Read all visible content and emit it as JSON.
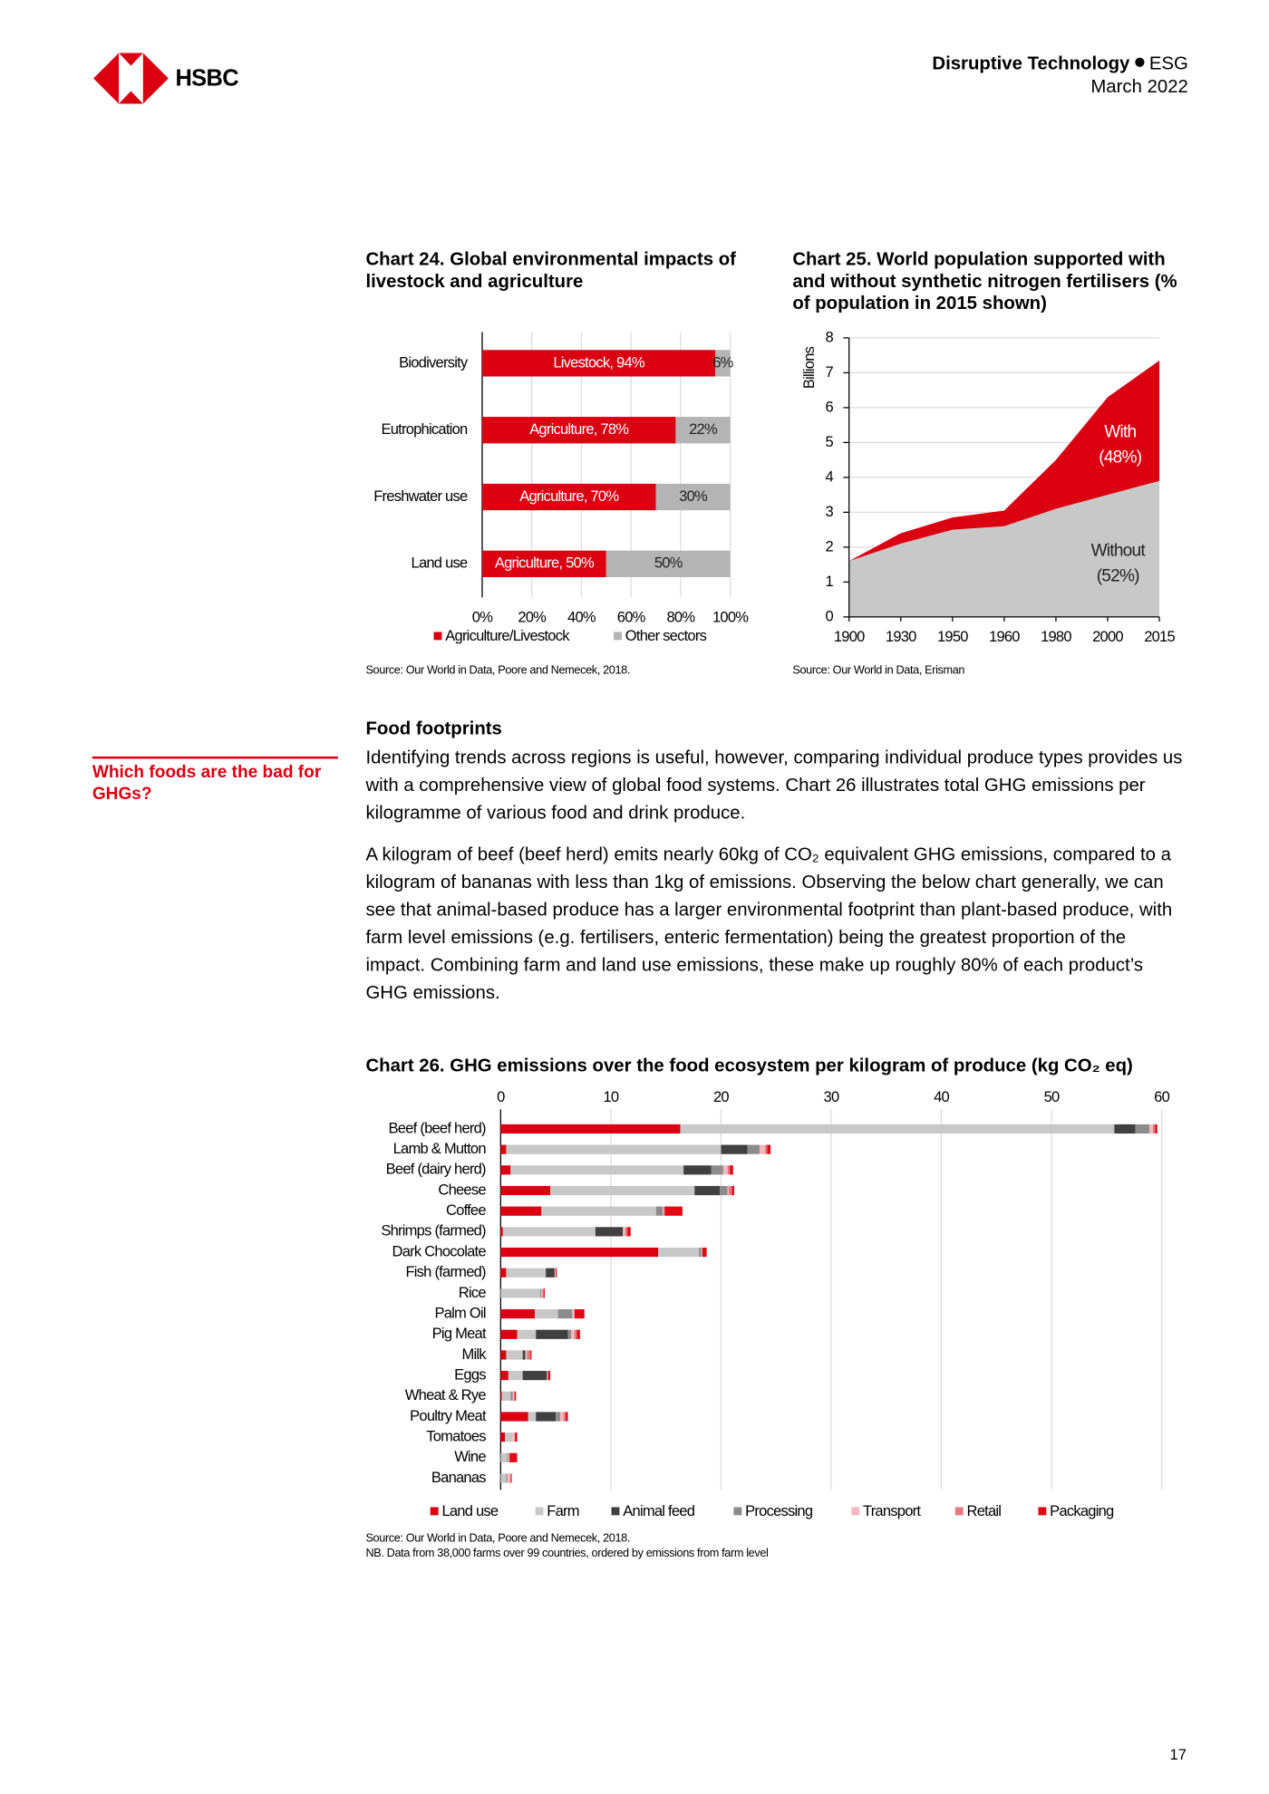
{
  "header": {
    "logo_text": "HSBC",
    "series": "Disruptive Technology",
    "topic": "ESG",
    "date": "March 2022"
  },
  "sidebar": {
    "note": "Which foods are the bad for GHGs?"
  },
  "section": {
    "heading": "Food footprints",
    "paragraphs": [
      "Identifying trends across regions is useful, however, comparing individual produce types provides us with a comprehensive view of global food systems. Chart 26 illustrates total GHG emissions per kilogramme of various food and drink produce.",
      "A kilogram of beef (beef herd) emits nearly 60kg of CO₂ equivalent GHG emissions, compared to a kilogram of bananas with less than 1kg of emissions. Observing the below chart generally, we can see that animal-based produce has a larger environmental footprint than plant-based produce, with farm level emissions (e.g. fertilisers, enteric fermentation) being the greatest proportion of the impact. Combining farm and land use emissions, these make up roughly 80% of each product’s GHG emissions."
    ]
  },
  "chart_data": [
    {
      "type": "bar",
      "horizontal": true,
      "stacked": true,
      "grid": true,
      "title": "Chart 24. Global environmental impacts of livestock and agriculture",
      "source": "Source: Our World in Data, Poore and Nemecek, 2018.",
      "categories": [
        "Biodiversity",
        "Eutrophication",
        "Freshwater use",
        "Land use"
      ],
      "series": [
        {
          "name": "Agriculture/Livestock",
          "color": "#db0011",
          "values": [
            94,
            78,
            70,
            50
          ],
          "value_labels": [
            "Livestock, 94%",
            "Agriculture, 78%",
            "Agriculture, 70%",
            "Agriculture, 50%"
          ]
        },
        {
          "name": "Other sectors",
          "color": "#b4b4b4",
          "values": [
            6,
            22,
            30,
            50
          ],
          "value_labels": [
            "6%",
            "22%",
            "30%",
            "50%"
          ]
        }
      ],
      "xlim": [
        0,
        100
      ],
      "xticks": [
        {
          "value": 0,
          "label": "0%"
        },
        {
          "value": 20,
          "label": "20%"
        },
        {
          "value": 40,
          "label": "40%"
        },
        {
          "value": 60,
          "label": "60%"
        },
        {
          "value": 80,
          "label": "80%"
        },
        {
          "value": 100,
          "label": "100%"
        }
      ]
    },
    {
      "type": "area",
      "stacked": true,
      "grid": true,
      "title": "Chart 25. World population supported with and without synthetic nitrogen fertilisers (% of population in 2015 shown)",
      "source": "Source: Our World in Data, Erisman",
      "y_label": "Billions",
      "categories": [
        "1900",
        "1930",
        "1950",
        "1960",
        "1980",
        "2000",
        "2015"
      ],
      "series": [
        {
          "name": "Without",
          "color": "#c8c8c8",
          "values": [
            1.6,
            2.1,
            2.5,
            2.6,
            3.1,
            3.5,
            3.9
          ]
        },
        {
          "name": "With",
          "color": "#db0011",
          "values": [
            0,
            0.3,
            0.35,
            0.45,
            1.4,
            2.8,
            3.45
          ]
        }
      ],
      "annotations": [
        "With",
        "(48%)",
        "Without",
        "(52%)"
      ],
      "ylim": [
        0,
        8
      ],
      "yticks": [
        0,
        1,
        2,
        3,
        4,
        5,
        6,
        7,
        8
      ]
    },
    {
      "type": "bar",
      "horizontal": true,
      "stacked": true,
      "grid": true,
      "title": "Chart 26. GHG emissions over the food ecosystem per kilogram of produce (kg CO₂ eq)",
      "source": "Source: Our World in Data, Poore and Nemecek, 2018.",
      "note": "NB. Data from 38,000 farms over 99 countries, ordered by emissions from farm level",
      "categories": [
        "Beef (beef herd)",
        "Lamb & Mutton",
        "Beef (dairy herd)",
        "Cheese",
        "Coffee",
        "Shrimps (farmed)",
        "Dark Chocolate",
        "Fish (farmed)",
        "Rice",
        "Palm Oil",
        "Pig Meat",
        "Milk",
        "Eggs",
        "Wheat & Rye",
        "Poultry Meat",
        "Tomatoes",
        "Wine",
        "Bananas"
      ],
      "series": [
        {
          "name": "Land use",
          "color": "#db0011",
          "values": [
            16.3,
            0.5,
            0.9,
            4.5,
            3.7,
            0.2,
            14.3,
            0.5,
            0,
            3.1,
            1.5,
            0.5,
            0.7,
            0.1,
            2.5,
            0.4,
            0,
            0
          ]
        },
        {
          "name": "Farm",
          "color": "#c8c8c8",
          "values": [
            39.4,
            19.5,
            15.7,
            13.1,
            10.4,
            8.4,
            3.7,
            3.6,
            3.6,
            2.1,
            1.7,
            1.5,
            1.3,
            0.8,
            0.7,
            0.7,
            0.6,
            0.5
          ]
        },
        {
          "name": "Animal feed",
          "color": "#404040",
          "values": [
            1.9,
            2.4,
            2.5,
            2.3,
            0,
            2.5,
            0,
            0.8,
            0,
            0,
            2.9,
            0.2,
            2.2,
            0,
            1.8,
            0,
            0,
            0
          ]
        },
        {
          "name": "Processing",
          "color": "#8c8c8c",
          "values": [
            1.3,
            1.1,
            1.1,
            0.7,
            0.6,
            0,
            0.2,
            0,
            0.1,
            1.3,
            0.3,
            0.1,
            0,
            0.2,
            0.4,
            0,
            0.1,
            0.1
          ]
        },
        {
          "name": "Transport",
          "color": "#f4b9be",
          "values": [
            0.3,
            0.5,
            0.4,
            0.1,
            0.1,
            0.2,
            0.1,
            0.1,
            0.1,
            0.2,
            0.3,
            0.1,
            0.1,
            0.1,
            0.3,
            0.2,
            0.1,
            0.3
          ]
        },
        {
          "name": "Retail",
          "color": "#e8787f",
          "values": [
            0.2,
            0.2,
            0.2,
            0.3,
            0.1,
            0.2,
            0,
            0,
            0.1,
            0,
            0.2,
            0.3,
            0,
            0.1,
            0.2,
            0,
            0,
            0
          ]
        },
        {
          "name": "Packaging",
          "color": "#e30613",
          "values": [
            0.2,
            0.3,
            0.3,
            0.2,
            1.6,
            0.3,
            0.4,
            0.1,
            0.1,
            0.9,
            0.3,
            0.1,
            0.2,
            0.1,
            0.2,
            0.2,
            0.7,
            0.1
          ]
        }
      ],
      "xlim": [
        0,
        60
      ],
      "xticks": [
        0,
        10,
        20,
        30,
        40,
        50,
        60
      ]
    }
  ],
  "page_number": "17"
}
